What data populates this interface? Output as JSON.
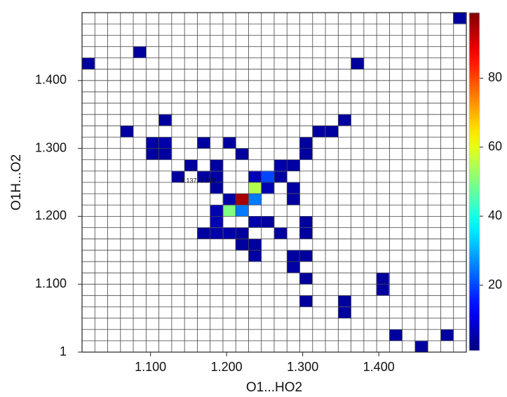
{
  "chart_data": {
    "type": "heatmap",
    "x_label": "O1...HO2",
    "y_label": "O1H...O2",
    "annotation": "1.137, 1.260",
    "colormap": "jet",
    "grid": true,
    "xlim": [
      1.01,
      1.515
    ],
    "ylim": [
      1.0,
      1.5
    ],
    "xticks": [
      {
        "value": 1.1,
        "label": "1.100"
      },
      {
        "value": 1.2,
        "label": "1.200"
      },
      {
        "value": 1.3,
        "label": "1.300"
      },
      {
        "value": 1.4,
        "label": "1.400"
      }
    ],
    "yticks": [
      1,
      {
        "value": 1.1,
        "label": "1.100"
      },
      {
        "value": 1.2,
        "label": "1.200"
      },
      {
        "value": 1.3,
        "label": "1.300"
      },
      {
        "value": 1.4,
        "label": "1.400"
      }
    ],
    "clim": [
      1,
      99
    ],
    "cticks": [
      20,
      40,
      60,
      80
    ],
    "x": [
      1.506,
      1.018,
      1.086,
      1.372,
      1.119,
      1.069,
      1.103,
      1.119,
      1.103,
      1.119,
      1.321,
      1.338,
      1.355,
      1.17,
      1.204,
      1.22,
      1.304,
      1.304,
      1.288,
      1.271,
      1.271,
      1.153,
      1.136,
      1.17,
      1.187,
      1.187,
      1.187,
      1.237,
      1.254,
      1.237,
      1.254,
      1.22,
      1.237,
      1.204,
      1.204,
      1.22,
      1.288,
      1.288,
      1.187,
      1.187,
      1.17,
      1.187,
      1.204,
      1.22,
      1.237,
      1.254,
      1.271,
      1.22,
      1.237,
      1.237,
      1.304,
      1.304,
      1.288,
      1.304,
      1.288,
      1.304,
      1.304,
      1.405,
      1.405,
      1.355,
      1.355,
      1.422,
      1.456,
      1.49
    ],
    "y": [
      1.492,
      1.425,
      1.442,
      1.425,
      1.342,
      1.325,
      1.308,
      1.308,
      1.292,
      1.292,
      1.325,
      1.325,
      1.342,
      1.308,
      1.308,
      1.292,
      1.308,
      1.292,
      1.275,
      1.275,
      1.258,
      1.275,
      1.258,
      1.258,
      1.275,
      1.258,
      1.242,
      1.258,
      1.258,
      1.242,
      1.242,
      1.225,
      1.225,
      1.225,
      1.208,
      1.208,
      1.242,
      1.225,
      1.208,
      1.192,
      1.175,
      1.175,
      1.175,
      1.175,
      1.192,
      1.192,
      1.175,
      1.158,
      1.158,
      1.142,
      1.192,
      1.175,
      1.142,
      1.142,
      1.125,
      1.108,
      1.075,
      1.108,
      1.092,
      1.075,
      1.058,
      1.025,
      1.008,
      1.025
    ],
    "values": [
      4,
      4,
      4,
      4,
      4,
      4,
      5,
      5,
      4,
      4,
      4,
      4,
      4,
      4,
      4,
      4,
      4,
      4,
      4,
      5,
      4,
      4,
      4,
      4,
      4,
      4,
      4,
      6,
      20,
      55,
      6,
      95,
      25,
      5,
      50,
      25,
      4,
      4,
      6,
      6,
      4,
      5,
      5,
      4,
      5,
      4,
      4,
      4,
      4,
      4,
      4,
      4,
      4,
      4,
      4,
      4,
      4,
      4,
      4,
      4,
      4,
      4,
      4,
      4
    ]
  }
}
